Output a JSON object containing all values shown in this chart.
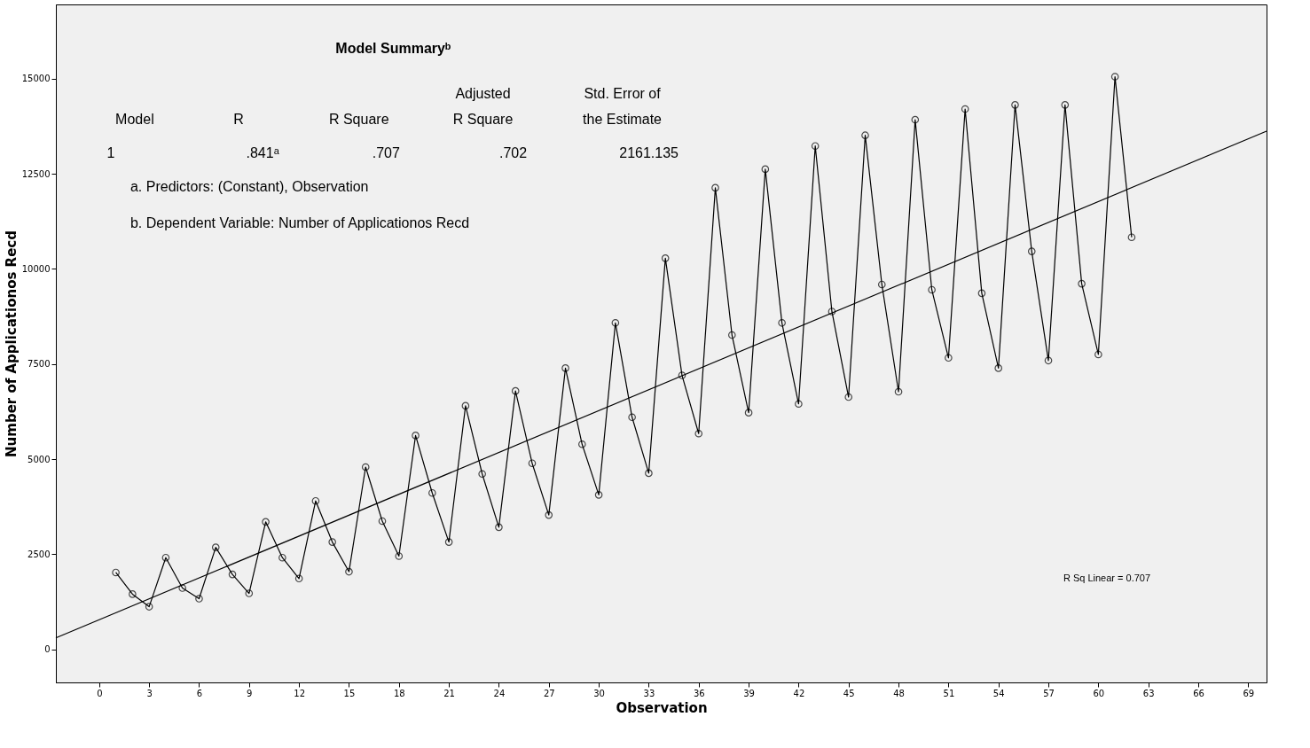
{
  "chart_data": {
    "type": "line",
    "xlabel": "Observation",
    "ylabel": "Number of Applicationos Recd",
    "x": [
      1,
      2,
      3,
      4,
      5,
      6,
      7,
      8,
      9,
      10,
      11,
      12,
      13,
      14,
      15,
      16,
      17,
      18,
      19,
      20,
      21,
      22,
      23,
      24,
      25,
      26,
      27,
      28,
      29,
      30,
      31,
      32,
      33,
      34,
      35,
      36,
      37,
      38,
      39,
      40,
      41,
      42,
      43,
      44,
      45,
      46,
      47,
      48,
      49,
      50,
      51,
      52,
      53,
      54,
      55,
      56,
      57,
      58,
      59,
      60,
      61,
      62
    ],
    "series": [
      {
        "color": "#000000",
        "marker": "circle",
        "line_style": "solid",
        "values": [
          2020,
          1450,
          1120,
          2410,
          1610,
          1330,
          2680,
          1970,
          1470,
          3350,
          2410,
          1860,
          3900,
          2820,
          2040,
          4790,
          3370,
          2450,
          5620,
          4110,
          2820,
          6400,
          4610,
          3210,
          6790,
          4890,
          3530,
          7390,
          5390,
          4060,
          8580,
          6100,
          4630,
          10280,
          7200,
          5670,
          12130,
          8260,
          6220,
          12620,
          8580,
          6450,
          13230,
          8880,
          6630,
          13510,
          9590,
          6770,
          13920,
          9450,
          7660,
          14200,
          9360,
          7390,
          14310,
          10460,
          7590,
          14310,
          9610,
          7750,
          15050,
          10830
        ]
      },
      {
        "color": "#000000",
        "marker": "none",
        "line_style": "solid",
        "x": [
          -2.6,
          70.1
        ],
        "values": [
          300,
          13620
        ]
      }
    ],
    "xlim": [
      -2.6,
      70.1
    ],
    "ylim": [
      -870,
      16950
    ],
    "xticks": [
      0,
      3,
      6,
      9,
      12,
      15,
      18,
      21,
      24,
      27,
      30,
      33,
      36,
      39,
      42,
      45,
      48,
      51,
      54,
      57,
      60,
      63,
      66,
      69
    ],
    "yticks": [
      0,
      2500,
      5000,
      7500,
      10000,
      12500,
      15000
    ],
    "grid": false,
    "annotations": [
      "Model Summaryᵇ",
      "Model",
      "R",
      "R Square",
      "Adjusted\nR Square",
      "Std. Error of\nthe Estimate",
      "1",
      ".841ᵃ",
      ".707",
      ".702",
      "2161.135",
      "a. Predictors: (Constant), Observation",
      "b. Dependent Variable: Number of Applicationos Recd",
      "R Sq Linear = 0.707"
    ]
  }
}
